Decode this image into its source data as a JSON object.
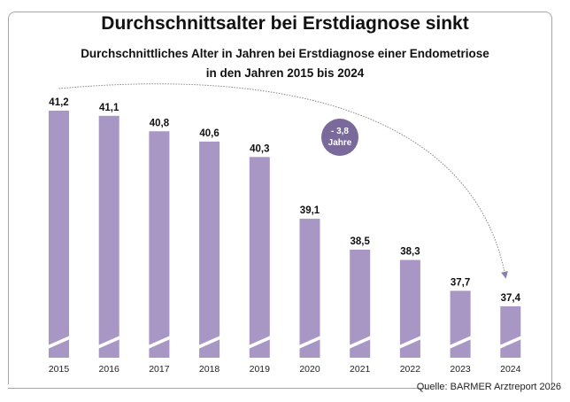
{
  "chart_data": {
    "type": "bar",
    "title": "Durchschnittsalter bei Erstdiagnose sinkt",
    "subtitle_lines": [
      "Durchschnittliches Alter in Jahren bei Erstdiagnose einer Endometriose",
      "in den Jahren 2015 bis 2024"
    ],
    "categories": [
      "2015",
      "2016",
      "2017",
      "2018",
      "2019",
      "2020",
      "2021",
      "2022",
      "2023",
      "2024"
    ],
    "values": [
      41.2,
      41.1,
      40.8,
      40.6,
      40.3,
      39.1,
      38.5,
      38.3,
      37.7,
      37.4
    ],
    "value_labels": [
      "41,2",
      "41,1",
      "40,8",
      "40,6",
      "40,3",
      "39,1",
      "38,5",
      "38,3",
      "37,7",
      "37,4"
    ],
    "xlabel": "",
    "ylabel": "",
    "ylim": [
      36.4,
      41.2
    ],
    "axis_break": true,
    "grid": false,
    "bar_color": "#a896c4",
    "annotation": {
      "type": "arrow",
      "from": "2015",
      "to": "2024",
      "label_line1": "- 3,8",
      "label_line2": "Jahre",
      "badge_color": "#7a6a9b"
    },
    "source": "Quelle: BARMER Arztreport 2026"
  }
}
